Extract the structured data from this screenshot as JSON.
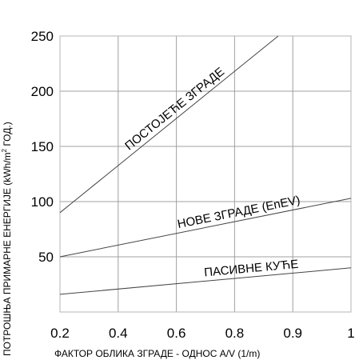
{
  "chart_data": {
    "type": "line",
    "title": "",
    "xlabel": "ФАКТОР ОБЛИКА ЗГРАДЕ - ОДНОС A/V (1/m)",
    "ylabel_parts": [
      "ПОТРОШЊА ПРИМАРНЕ ЕНЕРГИЈЕ (kWh/m",
      "2",
      " ГОД.)"
    ],
    "x_ticks": [
      "0.2",
      "0.4",
      "0.6",
      "0.8",
      "0.9",
      "1"
    ],
    "y_ticks": [
      "50",
      "100",
      "150",
      "200",
      "250"
    ],
    "xlim": [
      0.2,
      1
    ],
    "ylim": [
      0,
      250
    ],
    "grid": true,
    "series": [
      {
        "name": "ПОСТОЈЕЋЕ ЗГРАДЕ",
        "x": [
          0.2,
          0.8
        ],
        "y": [
          90,
          250
        ],
        "color": "#444444"
      },
      {
        "name": "НОВЕ ЗГРАДЕ (EnEV)",
        "x": [
          0.2,
          1
        ],
        "y": [
          50,
          103
        ],
        "color": "#444444"
      },
      {
        "name": "ПАСИВНЕ КУЋЕ",
        "x": [
          0.2,
          1
        ],
        "y": [
          16,
          40
        ],
        "color": "#444444"
      }
    ]
  }
}
